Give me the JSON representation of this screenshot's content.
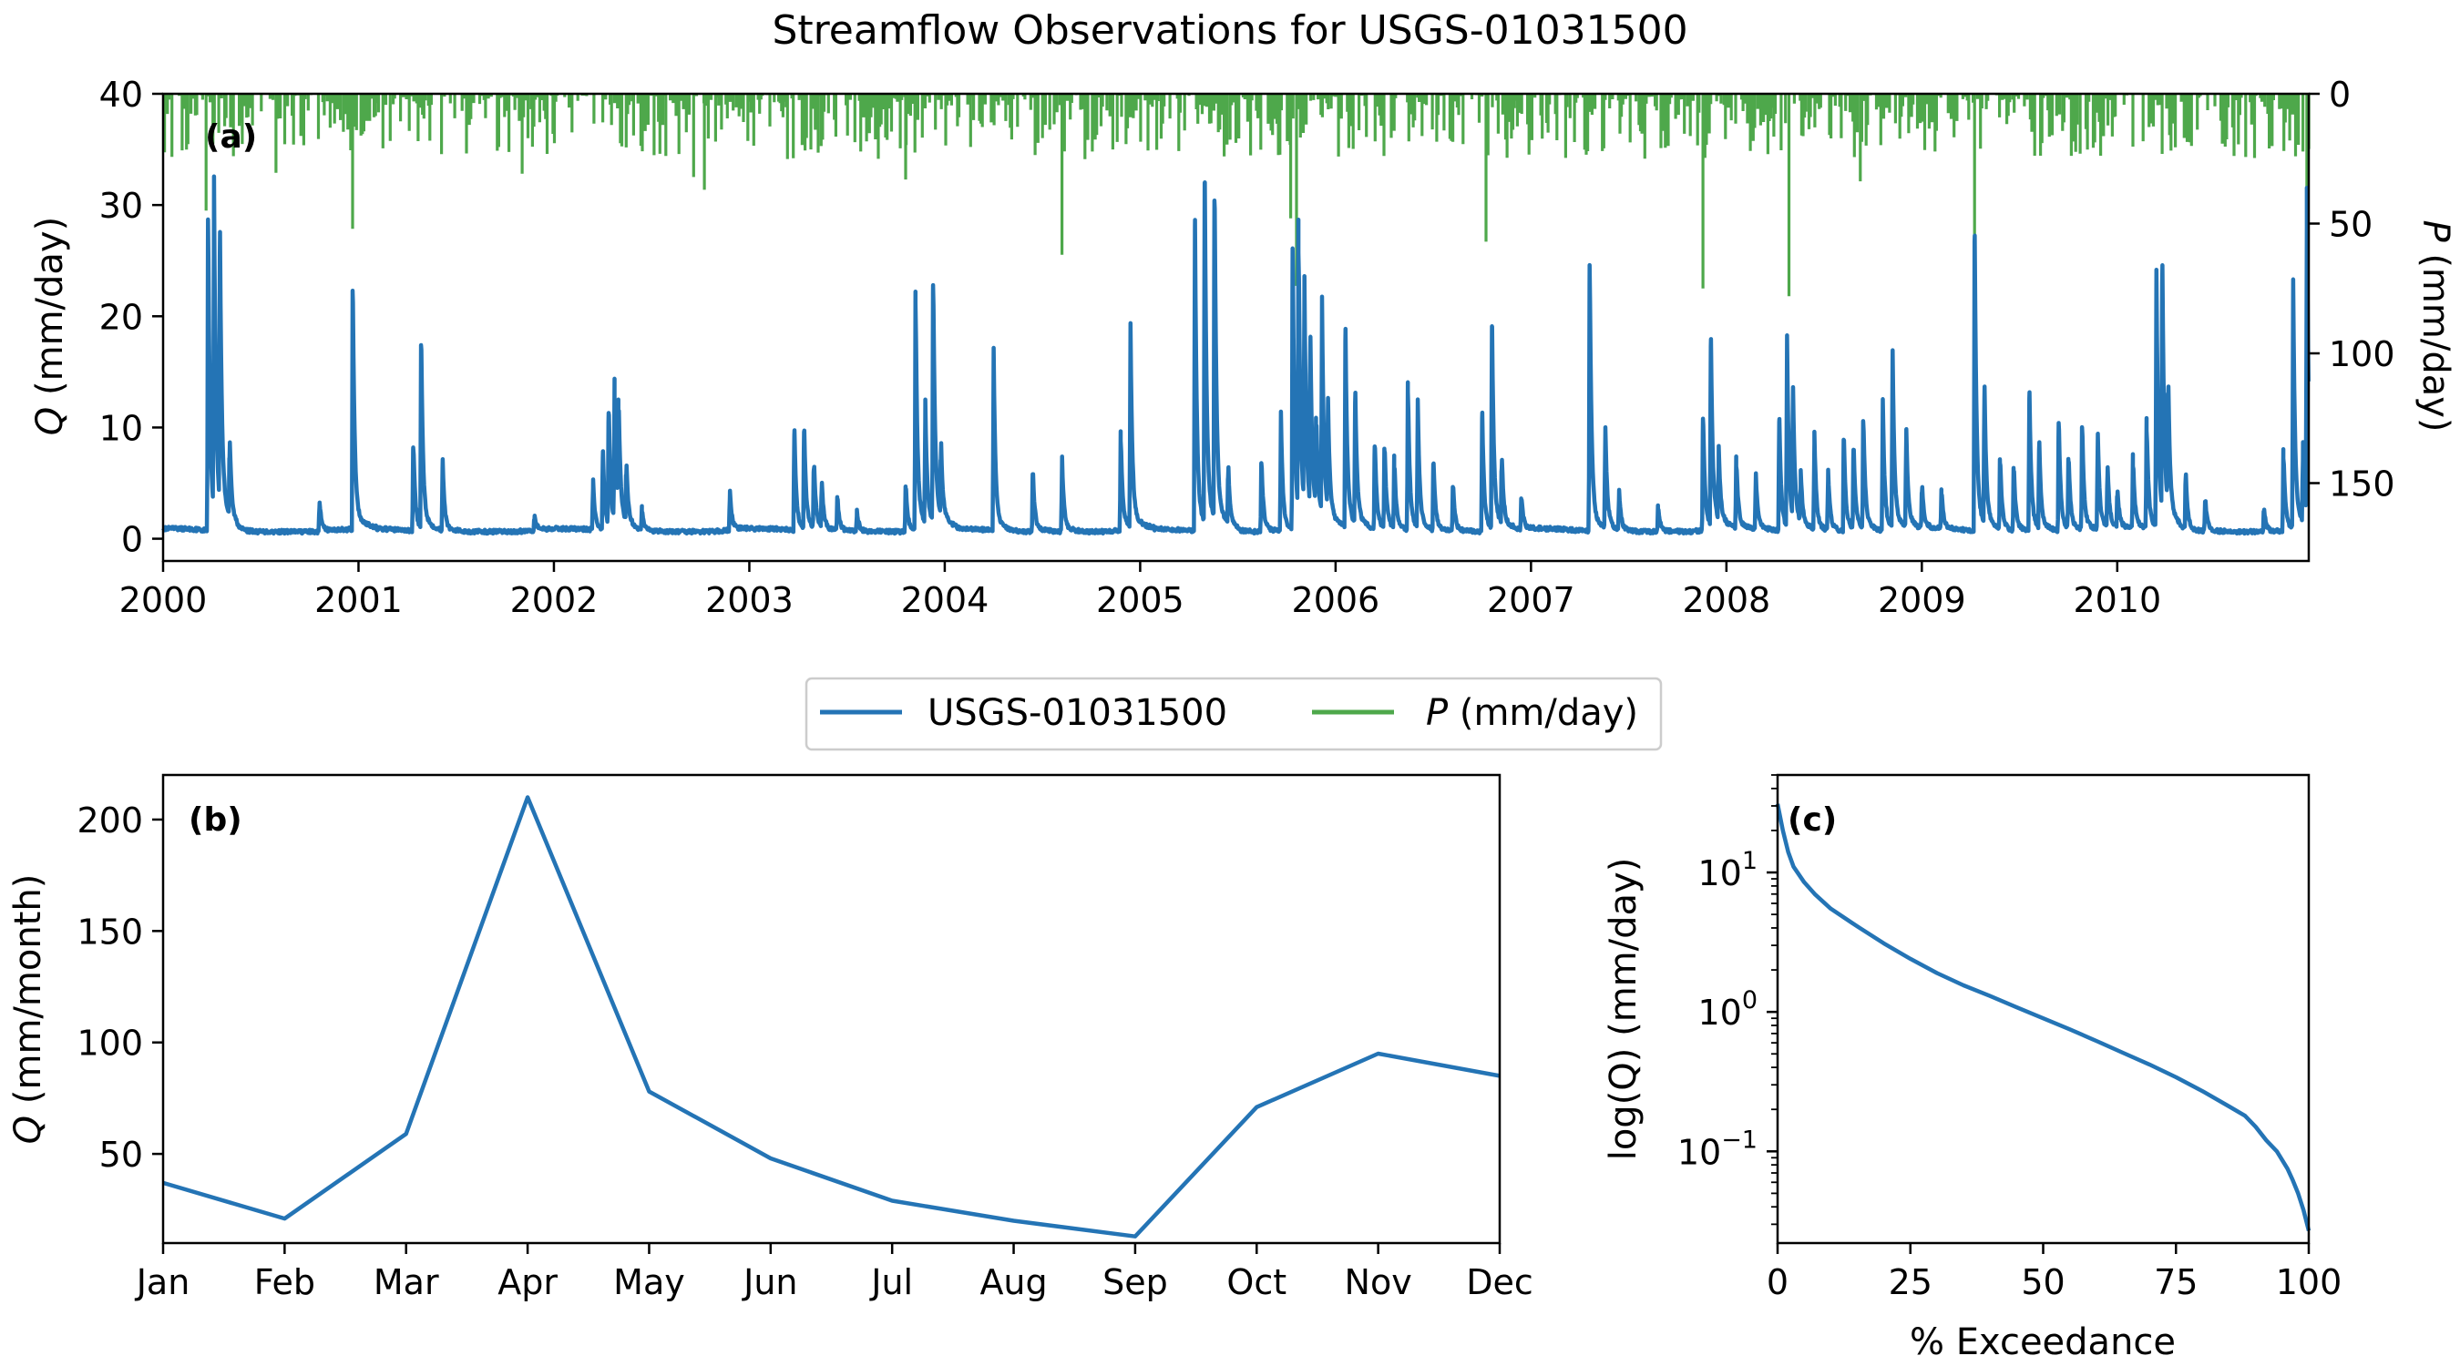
{
  "figure": {
    "title": "Streamflow Observations for USGS-01031500",
    "legend": {
      "placement": "center, between top and bottom panels",
      "entries": [
        {
          "label": "USGS-01031500",
          "color": "#2474b5"
        },
        {
          "label_italic": "P",
          "label_rest": " (mm/day)",
          "color": "#4ea84b"
        }
      ]
    }
  },
  "chart_data": [
    {
      "type": "line",
      "panel_label": "(a)",
      "ylabel_italic": "Q",
      "ylabel_rest": " (mm/day)",
      "y2label_italic": "P",
      "y2label_rest": " (mm/day)",
      "xlim": [
        2000.0,
        2010.98
      ],
      "ylim": [
        -2,
        40
      ],
      "y2lim": [
        0,
        180
      ],
      "y2_inverted": true,
      "xticks": [
        "2000",
        "2001",
        "2002",
        "2003",
        "2004",
        "2005",
        "2006",
        "2007",
        "2008",
        "2009",
        "2010"
      ],
      "yticks": [
        0,
        10,
        20,
        30,
        40
      ],
      "y2ticks": [
        0,
        50,
        100,
        150
      ],
      "series": [
        {
          "name": "USGS-01031500",
          "color": "#2474b5",
          "baseflow": 0.5,
          "peaks": [
            [
              2000.23,
              28.7
            ],
            [
              2000.26,
              28.5
            ],
            [
              2000.29,
              25.3
            ],
            [
              2000.34,
              7.2
            ],
            [
              2000.8,
              2.8
            ],
            [
              2000.97,
              22.3
            ],
            [
              2001.28,
              8.2
            ],
            [
              2001.32,
              17.4
            ],
            [
              2001.43,
              6.4
            ],
            [
              2001.9,
              1.5
            ],
            [
              2002.2,
              4.5
            ],
            [
              2002.25,
              7.3
            ],
            [
              2002.28,
              11.3
            ],
            [
              2002.31,
              12.5
            ],
            [
              2002.33,
              10.3
            ],
            [
              2002.37,
              5.6
            ],
            [
              2002.45,
              2.2
            ],
            [
              2002.9,
              3.5
            ],
            [
              2003.23,
              9.3
            ],
            [
              2003.28,
              9.6
            ],
            [
              2003.33,
              6.2
            ],
            [
              2003.37,
              4.3
            ],
            [
              2003.45,
              3.2
            ],
            [
              2003.55,
              2.0
            ],
            [
              2003.8,
              4.5
            ],
            [
              2003.85,
              21.2
            ],
            [
              2003.9,
              10.5
            ],
            [
              2003.94,
              22.8
            ],
            [
              2003.98,
              7.0
            ],
            [
              2004.25,
              15.7
            ],
            [
              2004.45,
              5.8
            ],
            [
              2004.6,
              6.5
            ],
            [
              2004.9,
              8.8
            ],
            [
              2004.95,
              17.6
            ],
            [
              2005.28,
              28.1
            ],
            [
              2005.33,
              32.0
            ],
            [
              2005.38,
              30.4
            ],
            [
              2005.45,
              5.5
            ],
            [
              2005.62,
              6.8
            ],
            [
              2005.72,
              10.3
            ],
            [
              2005.78,
              26.1
            ],
            [
              2005.81,
              25.7
            ],
            [
              2005.84,
              20.6
            ],
            [
              2005.87,
              16.2
            ],
            [
              2005.9,
              8.7
            ],
            [
              2005.93,
              19.0
            ],
            [
              2005.96,
              10.5
            ],
            [
              2006.05,
              17.8
            ],
            [
              2006.1,
              12.2
            ],
            [
              2006.2,
              8.3
            ],
            [
              2006.25,
              7.9
            ],
            [
              2006.3,
              6.4
            ],
            [
              2006.37,
              13.2
            ],
            [
              2006.42,
              11.2
            ],
            [
              2006.5,
              6.7
            ],
            [
              2006.6,
              4.5
            ],
            [
              2006.75,
              10.8
            ],
            [
              2006.8,
              19.1
            ],
            [
              2006.85,
              6.3
            ],
            [
              2006.95,
              3.0
            ],
            [
              2007.3,
              24.6
            ],
            [
              2007.38,
              9.2
            ],
            [
              2007.45,
              3.5
            ],
            [
              2007.65,
              2.5
            ],
            [
              2007.88,
              10.8
            ],
            [
              2007.92,
              17.3
            ],
            [
              2007.96,
              6.4
            ],
            [
              2008.05,
              6.5
            ],
            [
              2008.15,
              5.0
            ],
            [
              2008.27,
              10.5
            ],
            [
              2008.31,
              16.6
            ],
            [
              2008.34,
              12.0
            ],
            [
              2008.38,
              4.5
            ],
            [
              2008.45,
              8.6
            ],
            [
              2008.52,
              5.3
            ],
            [
              2008.6,
              8.9
            ],
            [
              2008.65,
              8.0
            ],
            [
              2008.7,
              10.5
            ],
            [
              2008.8,
              11.5
            ],
            [
              2008.85,
              16.0
            ],
            [
              2008.92,
              8.9
            ],
            [
              2009.0,
              4.0
            ],
            [
              2009.1,
              3.5
            ],
            [
              2009.27,
              26.7
            ],
            [
              2009.32,
              12.6
            ],
            [
              2009.4,
              6.8
            ],
            [
              2009.47,
              6.1
            ],
            [
              2009.55,
              12.6
            ],
            [
              2009.6,
              8.0
            ],
            [
              2009.7,
              10.4
            ],
            [
              2009.75,
              7.0
            ],
            [
              2009.82,
              10.0
            ],
            [
              2009.9,
              8.7
            ],
            [
              2009.95,
              5.7
            ],
            [
              2010.0,
              3.5
            ],
            [
              2010.08,
              6.5
            ],
            [
              2010.15,
              9.7
            ],
            [
              2010.2,
              22.3
            ],
            [
              2010.23,
              23.0
            ],
            [
              2010.26,
              12.2
            ],
            [
              2010.35,
              5.4
            ],
            [
              2010.45,
              3.0
            ],
            [
              2010.75,
              2.3
            ],
            [
              2010.85,
              7.2
            ],
            [
              2010.9,
              21.5
            ],
            [
              2010.95,
              7.0
            ],
            [
              2010.97,
              28.0
            ]
          ]
        },
        {
          "name_italic": "P",
          "name_rest": " (mm/day)",
          "color": "#4ea84b",
          "typical_daily_max": 18,
          "spikes": [
            [
              2000.22,
              45
            ],
            [
              2000.97,
              52
            ],
            [
              2002.77,
              37
            ],
            [
              2003.8,
              33
            ],
            [
              2004.6,
              62
            ],
            [
              2005.77,
              48
            ],
            [
              2005.8,
              74
            ],
            [
              2006.77,
              57
            ],
            [
              2007.88,
              75
            ],
            [
              2008.32,
              78
            ],
            [
              2009.27,
              58
            ],
            [
              2010.97,
              48
            ]
          ]
        }
      ]
    },
    {
      "type": "line",
      "panel_label": "(b)",
      "ylabel_italic": "Q",
      "ylabel_rest": " (mm/month)",
      "categories": [
        "Jan",
        "Feb",
        "Mar",
        "Apr",
        "May",
        "Jun",
        "Jul",
        "Aug",
        "Sep",
        "Oct",
        "Nov",
        "Dec"
      ],
      "values": [
        37,
        21,
        59,
        210,
        78,
        48,
        29,
        20,
        13,
        71,
        95,
        85
      ],
      "ylim": [
        10,
        220
      ],
      "yticks": [
        50,
        100,
        150,
        200
      ],
      "series_name": "USGS-01031500",
      "color": "#2474b5"
    },
    {
      "type": "line",
      "panel_label": "(c)",
      "ylabel_text": "log(Q) (mm/day)",
      "xlabel": "% Exceedance",
      "xlim": [
        0,
        100
      ],
      "xticks": [
        0,
        25,
        50,
        75,
        100
      ],
      "yscale": "log",
      "ylim": [
        0.022,
        50
      ],
      "yticks": [
        {
          "base": "10",
          "exp": "1",
          "value": 10
        },
        {
          "base": "10",
          "exp": "0",
          "value": 1
        },
        {
          "base": "10",
          "exp": "−1",
          "value": 0.1
        }
      ],
      "x": [
        0,
        1,
        2,
        3,
        5,
        7,
        10,
        15,
        20,
        25,
        30,
        35,
        40,
        45,
        50,
        55,
        60,
        65,
        70,
        75,
        80,
        85,
        88,
        90,
        92,
        94,
        96,
        97,
        98,
        99,
        100
      ],
      "values": [
        31,
        20,
        14,
        11,
        8.5,
        7,
        5.5,
        4.1,
        3.1,
        2.4,
        1.9,
        1.55,
        1.3,
        1.08,
        0.9,
        0.75,
        0.62,
        0.51,
        0.42,
        0.34,
        0.27,
        0.21,
        0.18,
        0.15,
        0.12,
        0.1,
        0.075,
        0.062,
        0.05,
        0.038,
        0.027
      ],
      "color": "#2474b5"
    }
  ]
}
